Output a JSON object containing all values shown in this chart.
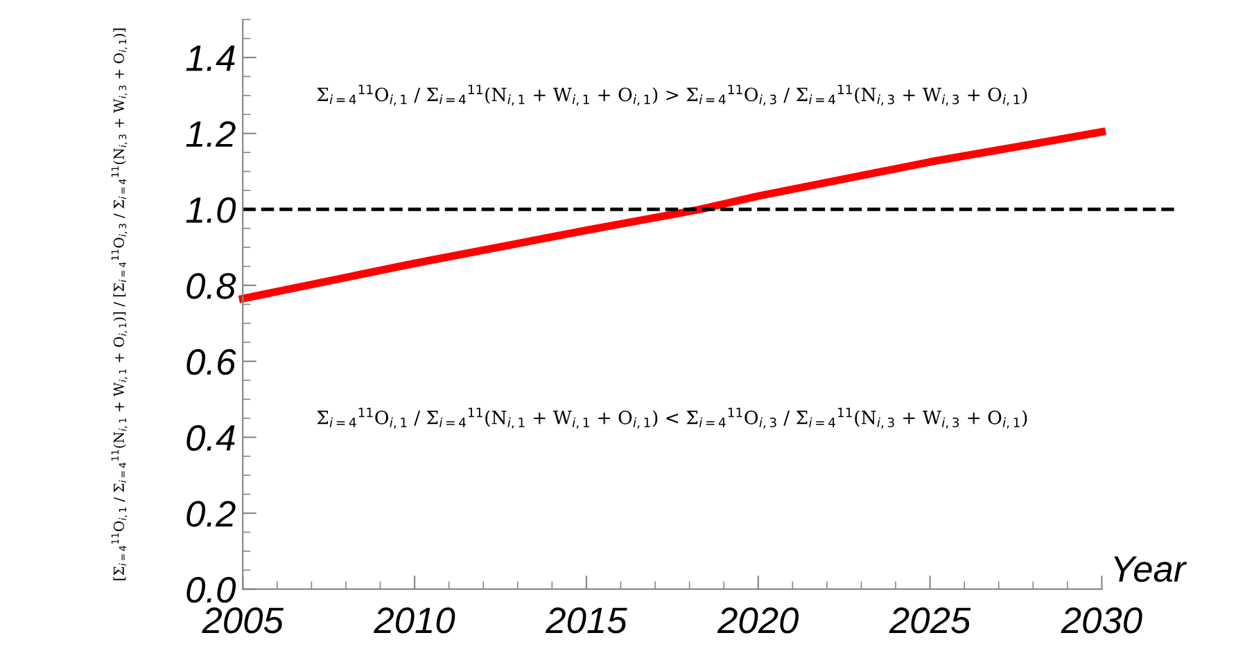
{
  "chart_data": {
    "type": "line",
    "xlabel": "Year",
    "ylabel": "[Σ$_{i=4}$$^{11}$O$_{i,1}$ / Σ$_{i=4}$$^{11}$(N$_{i,1}$ + W$_{i,1}$ + O$_{i,1}$)] / [Σ$_{i=4}$$^{11}$O$_{i,3}$ / Σ$_{i=4}$$^{11}$(N$_{i,3}$ + W$_{i,3}$ + O$_{i,1}$)]",
    "x": [
      2005,
      2010,
      2015,
      2018.3,
      2020,
      2025,
      2030
    ],
    "series": [
      {
        "color": "#ff0000",
        "values": [
          0.765,
          0.858,
          0.945,
          1.0,
          1.035,
          1.125,
          1.204
        ]
      }
    ],
    "xlim": [
      2005,
      2030
    ],
    "xticks": [
      2005,
      2010,
      2015,
      2020,
      2025,
      2030
    ],
    "ylim": [
      0,
      1.5
    ],
    "yticks": [
      {
        "value": 0,
        "label": "0.0"
      },
      0.2,
      0.4,
      0.6,
      0.8,
      {
        "value": 1,
        "label": "1.0"
      },
      1.2,
      1.4
    ],
    "ref_lines": [
      {
        "axis": "y",
        "value": 1,
        "color": "#000000",
        "line_style": "dashed"
      }
    ],
    "annotations": [
      "Σ$_{i=4}$$^{11}$O$_{i,1}$ / Σ$_{i=4}$$^{11}$(N$_{i,1}$ + W$_{i,1}$ + O$_{i,1}$) > Σ$_{i=4}$$^{11}$O$_{i,3}$ / Σ$_{i=4}$$^{11}$(N$_{i,3}$ + W$_{i,3}$ + O$_{i,1}$)",
      "Σ$_{i=4}$$^{11}$O$_{i,1}$ / Σ$_{i=4}$$^{11}$(N$_{i,1}$ + W$_{i,1}$ + O$_{i,1}$) < Σ$_{i=4}$$^{11}$O$_{i,3}$ / Σ$_{i=4}$$^{11}$(N$_{i,3}$ + W$_{i,3}$ + O$_{i,1}$)"
    ],
    "grid": false,
    "legend": false,
    "line_style": "solid",
    "marker": "none"
  }
}
